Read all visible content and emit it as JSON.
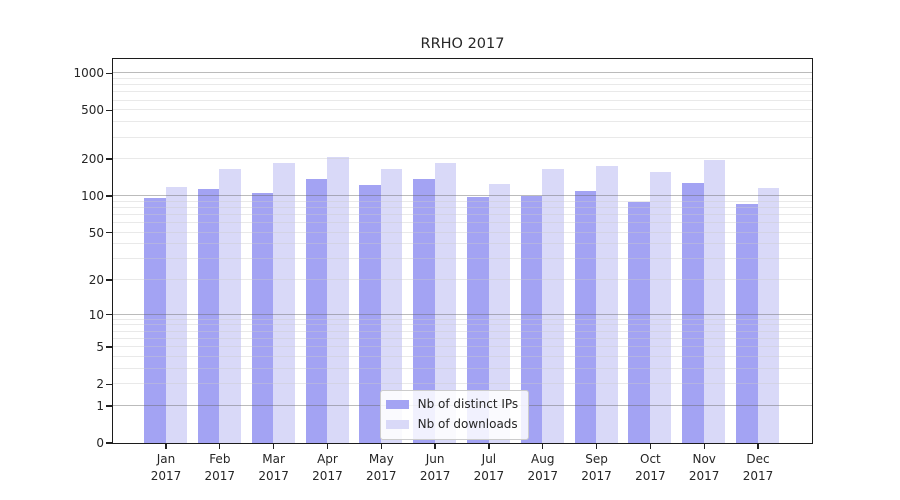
{
  "chart_data": {
    "type": "bar",
    "title": "RRHO 2017",
    "categories": [
      "Jan",
      "Feb",
      "Mar",
      "Apr",
      "May",
      "Jun",
      "Jul",
      "Aug",
      "Sep",
      "Oct",
      "Nov",
      "Dec"
    ],
    "year_label": "2017",
    "series": [
      {
        "name": "Nb of distinct IPs",
        "color": "#a3a3f3",
        "values": [
          96,
          113,
          104,
          136,
          122,
          136,
          98,
          100,
          110,
          89,
          127,
          86
        ]
      },
      {
        "name": "Nb of downloads",
        "color": "#d9d9f8",
        "values": [
          117,
          165,
          186,
          205,
          166,
          185,
          124,
          166,
          173,
          156,
          196,
          116
        ]
      }
    ],
    "xlabel": "",
    "ylabel": "",
    "yscale": "log1p",
    "yticks": [
      0,
      1,
      2,
      5,
      10,
      20,
      50,
      100,
      200,
      500,
      1000
    ],
    "major_grid_values": [
      1,
      10,
      100,
      1000
    ],
    "ylim": [
      0,
      1290
    ],
    "grid": "on",
    "legend_position": "lower center inside plot"
  }
}
